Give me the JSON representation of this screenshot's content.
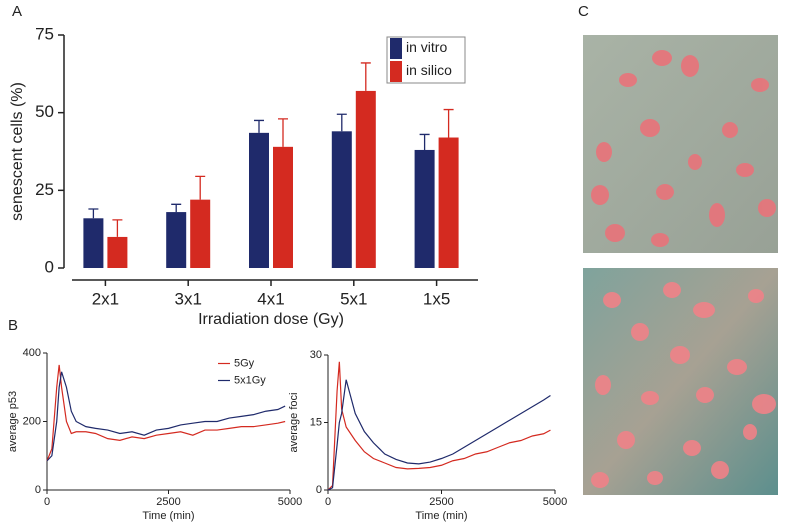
{
  "panel_labels": [
    "A",
    "B",
    "C"
  ],
  "chart_data": [
    {
      "type": "bar",
      "x_label": "Irradiation dose (Gy)",
      "y_label": "senescent cells (%)",
      "categories": [
        "2x1",
        "3x1",
        "4x1",
        "5x1",
        "1x5"
      ],
      "series": [
        {
          "name": "in vitro",
          "color": "#1f2a6b",
          "values": [
            16,
            18,
            43.5,
            44,
            38
          ],
          "errors": [
            3,
            2.5,
            4,
            5.5,
            5
          ]
        },
        {
          "name": "in silico",
          "color": "#d42a20",
          "values": [
            10,
            22,
            39,
            57,
            42
          ],
          "errors": [
            5.5,
            7.5,
            9,
            9,
            9
          ]
        }
      ],
      "ylim": [
        0,
        75
      ],
      "yticks": [
        0,
        25,
        50,
        75
      ],
      "legend": "top-right"
    },
    {
      "type": "line",
      "x_label": "Time (min)",
      "y_label": "average p53",
      "x": [
        0,
        100,
        200,
        250,
        300,
        400,
        500,
        600,
        800,
        1000,
        1250,
        1500,
        1750,
        2000,
        2250,
        2500,
        2750,
        3000,
        3250,
        3500,
        3750,
        4000,
        4250,
        4500,
        4750,
        4900
      ],
      "series": [
        {
          "name": "5Gy",
          "color": "#d42a20",
          "values": [
            85,
            120,
            300,
            365,
            300,
            200,
            165,
            170,
            170,
            165,
            150,
            145,
            155,
            150,
            160,
            165,
            170,
            160,
            175,
            175,
            180,
            185,
            185,
            190,
            195,
            200
          ]
        },
        {
          "name": "5x1Gy",
          "color": "#1f2a6b",
          "values": [
            85,
            100,
            200,
            300,
            345,
            300,
            230,
            200,
            185,
            180,
            175,
            165,
            170,
            160,
            175,
            180,
            190,
            195,
            200,
            200,
            210,
            215,
            220,
            230,
            235,
            245
          ]
        }
      ],
      "xlim": [
        0,
        5000
      ],
      "xticks": [
        0,
        2500,
        5000
      ],
      "ylim": [
        0,
        400
      ],
      "yticks": [
        0,
        200,
        400
      ],
      "legend": "top-right"
    },
    {
      "type": "line",
      "x_label": "Time (min)",
      "y_label": "average foci",
      "x": [
        0,
        100,
        200,
        250,
        300,
        400,
        600,
        800,
        1000,
        1250,
        1500,
        1750,
        2000,
        2250,
        2500,
        2750,
        3000,
        3250,
        3500,
        3750,
        4000,
        4250,
        4500,
        4750,
        4900
      ],
      "series": [
        {
          "color": "#d42a20",
          "values": [
            0,
            1,
            22,
            28.5,
            18,
            14,
            11,
            8.5,
            7,
            6,
            5,
            4.7,
            4.8,
            5,
            5.5,
            6.5,
            7,
            8,
            8.5,
            9.5,
            10.5,
            11,
            12,
            12.5,
            13.3
          ]
        },
        {
          "color": "#1f2a6b",
          "values": [
            0,
            0.5,
            10,
            15,
            17,
            24.5,
            17,
            13,
            10.5,
            8,
            6.8,
            6,
            5.8,
            6.2,
            7,
            8,
            9.5,
            11,
            12.5,
            14,
            15.5,
            17,
            18.5,
            20,
            21
          ]
        }
      ],
      "xlim": [
        0,
        5000
      ],
      "xticks": [
        0,
        2500,
        5000
      ],
      "ylim": [
        0,
        30
      ],
      "yticks": [
        0,
        15,
        30
      ]
    }
  ]
}
